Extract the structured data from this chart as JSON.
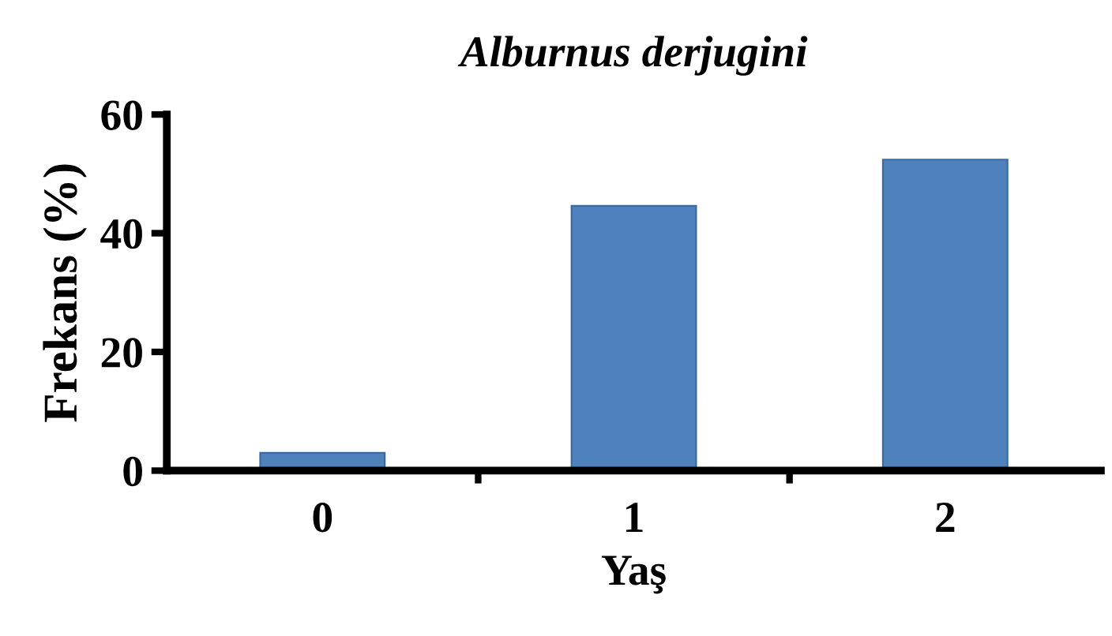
{
  "chart_data": {
    "type": "bar",
    "title": "Alburnus derjugini",
    "xlabel": "Yaş",
    "ylabel": "Frekans (%)",
    "categories": [
      "0",
      "1",
      "2"
    ],
    "values": [
      3,
      44.6,
      52.4
    ],
    "color": "#4f81bd",
    "ylim": [
      0,
      60
    ],
    "yticks": [
      0,
      20,
      40,
      60
    ],
    "grid": false
  }
}
